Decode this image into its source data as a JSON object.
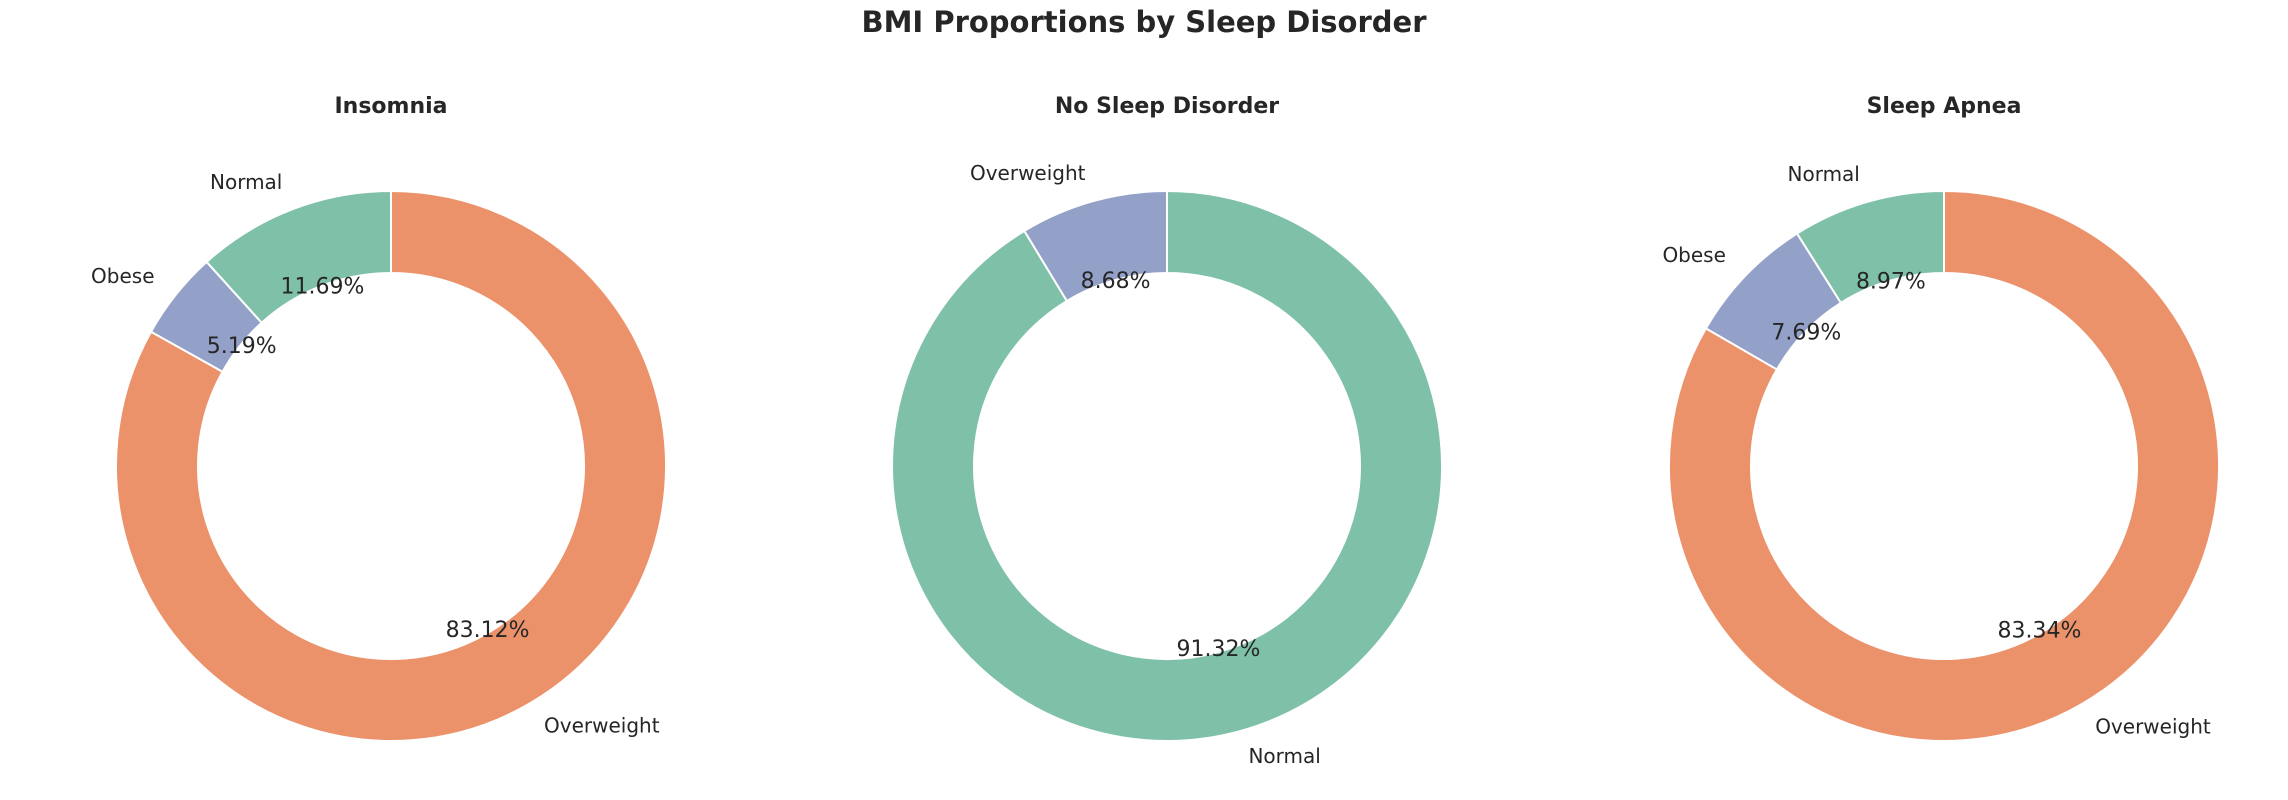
{
  "chart_data": {
    "type": "pie",
    "title": "BMI Proportions by Sleep Disorder",
    "charts": [
      {
        "title": "Insomnia",
        "slices": [
          {
            "label": "Overweight",
            "value": 83.12,
            "display": "83.12%",
            "color": "#ec926b"
          },
          {
            "label": "Obese",
            "value": 5.19,
            "display": "5.19%",
            "color": "#93a0c8"
          },
          {
            "label": "Normal",
            "value": 11.69,
            "display": "11.69%",
            "color": "#7fc0a8"
          }
        ]
      },
      {
        "title": "No Sleep Disorder",
        "slices": [
          {
            "label": "Normal",
            "value": 91.32,
            "display": "91.32%",
            "color": "#7fc0a8"
          },
          {
            "label": "Overweight",
            "value": 8.68,
            "display": "8.68%",
            "color": "#93a0c8"
          }
        ]
      },
      {
        "title": "Sleep Apnea",
        "slices": [
          {
            "label": "Overweight",
            "value": 83.34,
            "display": "83.34%",
            "color": "#ec926b"
          },
          {
            "label": "Obese",
            "value": 7.69,
            "display": "7.69%",
            "color": "#93a0c8"
          },
          {
            "label": "Normal",
            "value": 8.97,
            "display": "8.97%",
            "color": "#7fc0a8"
          }
        ]
      }
    ],
    "start_angle": "top",
    "direction": "clockwise",
    "style": "donut"
  }
}
